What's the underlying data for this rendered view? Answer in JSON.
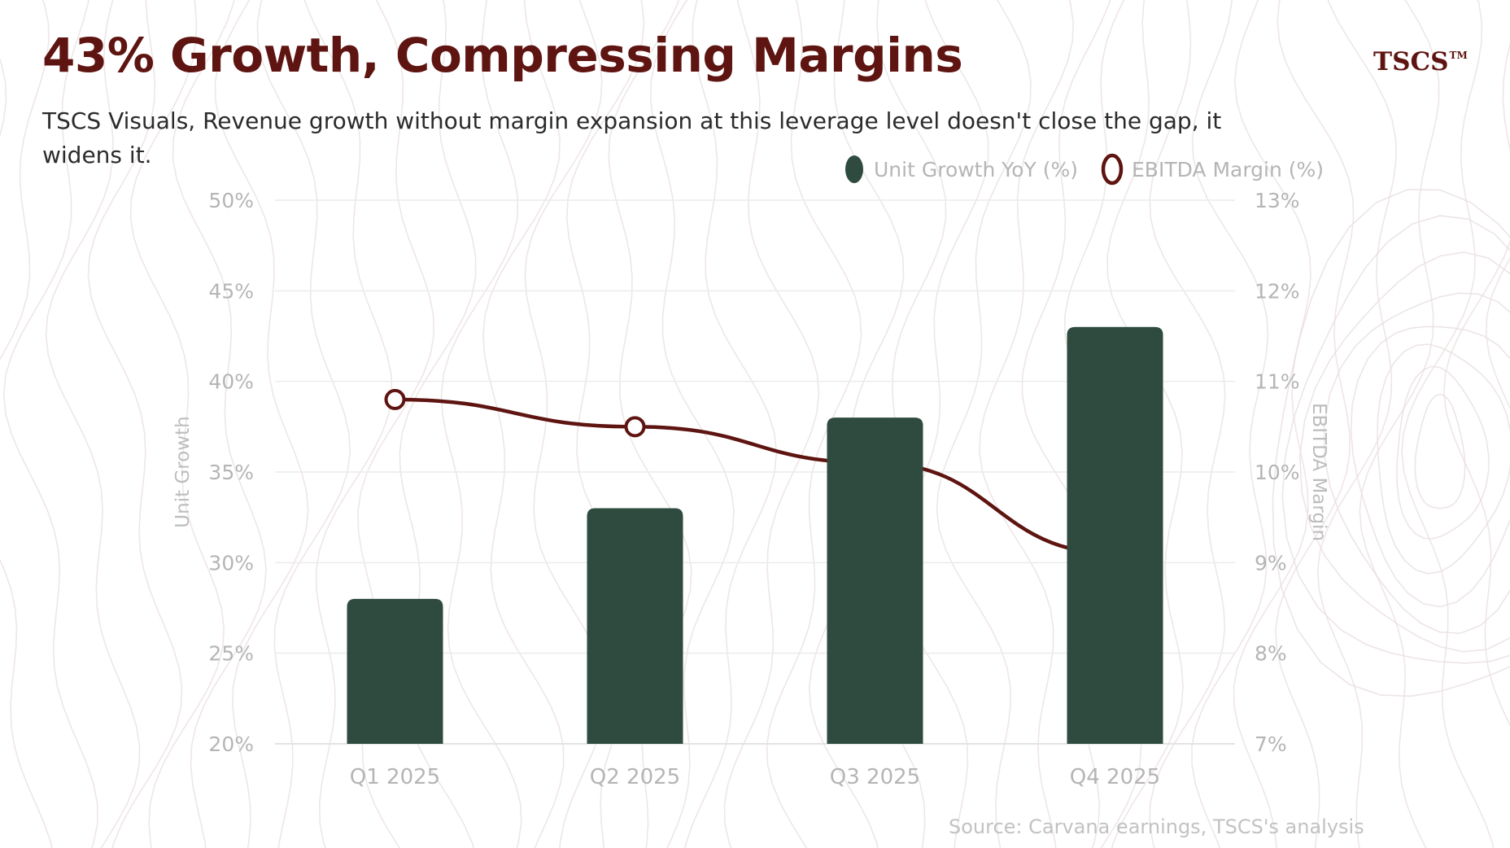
{
  "header": {
    "title": "43% Growth, Compressing Margins",
    "subtitle": "TSCS Visuals, Revenue growth without margin expansion at this leverage level doesn't close the gap, it widens it.",
    "brand": "TSCS",
    "brand_mark": "TM"
  },
  "footer": {
    "source": "Source: Carvana earnings, TSCS's analysis"
  },
  "colors": {
    "title": "#5e1410",
    "bar": "#2f4b3f",
    "line": "#5e1410",
    "axis_text": "#b5b5b5",
    "grid": "#ececec"
  },
  "chart_data": {
    "type": "bar",
    "categories": [
      "Q1 2025",
      "Q2 2025",
      "Q3 2025",
      "Q4 2025"
    ],
    "series": [
      {
        "name": "Unit Growth YoY (%)",
        "kind": "bar",
        "axis": "left",
        "values": [
          28,
          33,
          38,
          43
        ]
      },
      {
        "name": "EBITDA Margin (%)",
        "kind": "line",
        "axis": "right",
        "values": [
          10.8,
          10.5,
          10.1,
          9.1
        ]
      }
    ],
    "ylabel": "Unit Growth",
    "y2label": "EBITDA Margin",
    "ylim": [
      20,
      50
    ],
    "y2lim": [
      7,
      13
    ],
    "yticks": [
      "20%",
      "25%",
      "30%",
      "35%",
      "40%",
      "45%",
      "50%"
    ],
    "y2ticks": [
      "7%",
      "8%",
      "9%",
      "10%",
      "11%",
      "12%",
      "13%"
    ],
    "legend_position": "top-right",
    "grid": true
  }
}
